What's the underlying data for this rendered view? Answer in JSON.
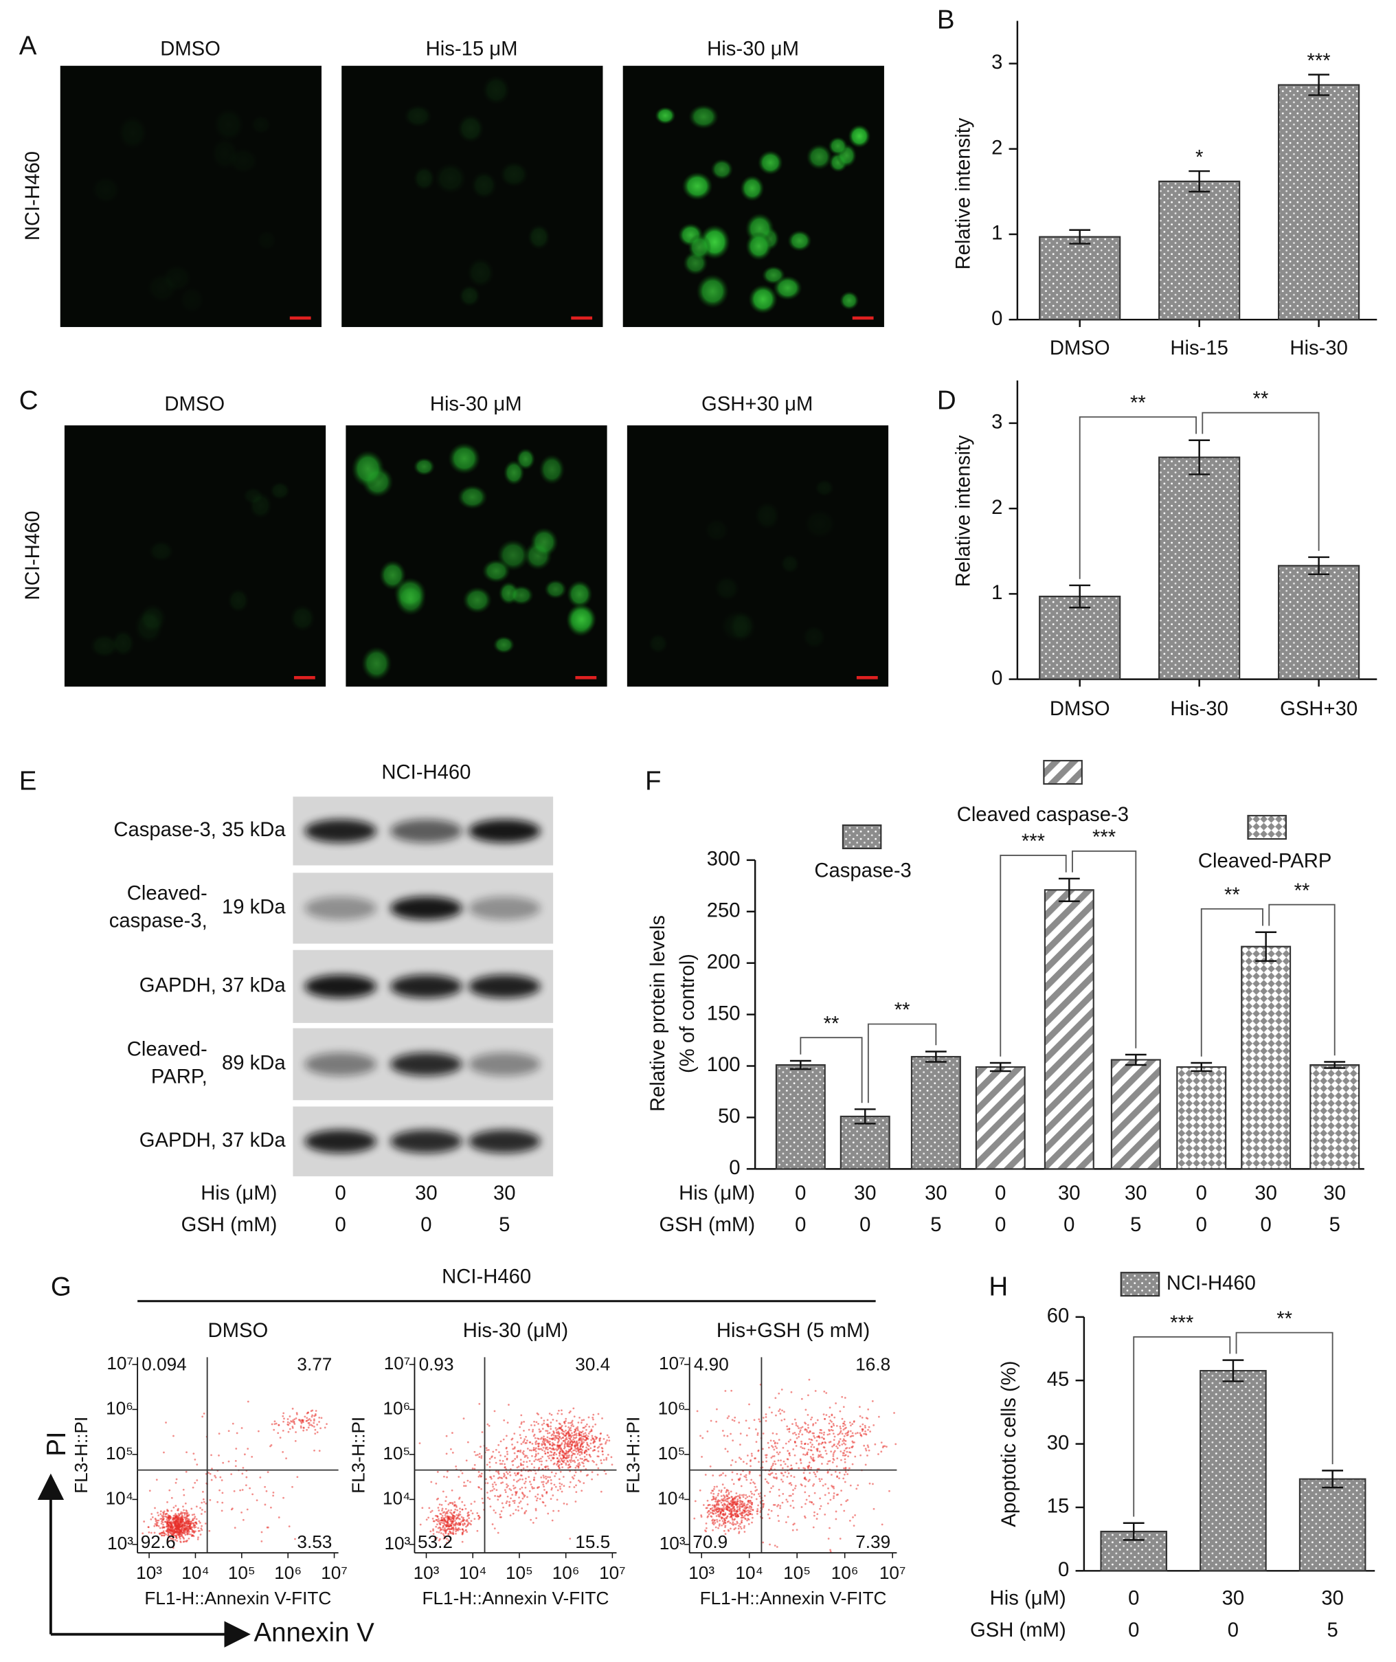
{
  "figure": {
    "panel_a": {
      "label": "A",
      "row_label": "NCI-H460",
      "titles": [
        "DMSO",
        "His-15 μM",
        "His-30 μM"
      ]
    },
    "panel_c": {
      "label": "C",
      "row_label": "NCI-H460",
      "titles": [
        "DMSO",
        "His-30 μM",
        "GSH+30 μM"
      ]
    },
    "panel_e": {
      "label": "E",
      "title": "NCI-H460",
      "rows": [
        [
          "Caspase-3, 35 kDa"
        ],
        [
          "Cleaved-",
          "caspase-3,",
          "19 kDa"
        ],
        [
          "GAPDH, 37 kDa"
        ],
        [
          "Cleaved-",
          "PARP,",
          "89 kDa"
        ],
        [
          "GAPDH, 37 kDa"
        ]
      ],
      "conditions": [
        {
          "label": "His (μM)",
          "values": [
            0,
            30,
            30
          ]
        },
        {
          "label": "GSH (mM)",
          "values": [
            0,
            0,
            5
          ]
        }
      ]
    },
    "panel_g": {
      "label": "G",
      "title": "NCI-H460",
      "axis_y": "PI",
      "axis_x": "Annexin V"
    }
  },
  "chart_data": [
    {
      "type": "bar",
      "label": "B",
      "ylabel": [
        "Relative intensity"
      ],
      "categories": [
        "DMSO",
        "His-15",
        "His-30"
      ],
      "values": [
        0.97,
        1.62,
        2.75
      ],
      "errors": [
        0.08,
        0.12,
        0.12
      ],
      "significance": [
        null,
        "*",
        "***"
      ],
      "ylim": [
        0,
        3.5
      ],
      "yticks": [
        0,
        1,
        2,
        3
      ],
      "color": "#8c8c8c",
      "pattern": "dots"
    },
    {
      "type": "bar",
      "label": "D",
      "ylabel": [
        "Relative intensity"
      ],
      "categories": [
        "DMSO",
        "His-30",
        "GSH+30"
      ],
      "values": [
        0.97,
        2.6,
        1.33
      ],
      "errors": [
        0.13,
        0.2,
        0.1
      ],
      "brackets": [
        {
          "text": "**",
          "between": [
            0,
            1
          ]
        },
        {
          "text": "**",
          "between": [
            1,
            2
          ]
        }
      ],
      "ylim": [
        0,
        3.5
      ],
      "yticks": [
        0,
        1,
        2,
        3
      ],
      "color": "#8c8c8c",
      "pattern": "dots"
    },
    {
      "type": "bar",
      "label": "F",
      "ylabel": [
        "Relative protein levels",
        "(% of control)"
      ],
      "ylim": [
        0,
        300
      ],
      "yticks": [
        0,
        50,
        100,
        150,
        200,
        250,
        300
      ],
      "color": "#8c8c8c",
      "series": [
        {
          "name": "Caspase-3",
          "pattern": "dots",
          "values": [
            101,
            51,
            109
          ],
          "errors": [
            4,
            7,
            5
          ],
          "brackets": [
            {
              "text": "**",
              "between": [
                0,
                1
              ]
            },
            {
              "text": "**",
              "between": [
                1,
                2
              ]
            }
          ]
        },
        {
          "name": "Cleaved caspase-3",
          "pattern": "hatch",
          "values": [
            99,
            271,
            106
          ],
          "errors": [
            4,
            11,
            5
          ],
          "brackets": [
            {
              "text": "***",
              "between": [
                0,
                1
              ]
            },
            {
              "text": "***",
              "between": [
                1,
                2
              ]
            }
          ]
        },
        {
          "name": "Cleaved-PARP",
          "pattern": "check",
          "values": [
            99,
            216,
            101
          ],
          "errors": [
            4,
            14,
            3
          ],
          "brackets": [
            {
              "text": "**",
              "between": [
                0,
                1
              ]
            },
            {
              "text": "**",
              "between": [
                1,
                2
              ]
            }
          ]
        }
      ],
      "conditions": [
        {
          "label": "His (μM)",
          "values": [
            0,
            30,
            30,
            0,
            30,
            30,
            0,
            30,
            30
          ]
        },
        {
          "label": "GSH (mM)",
          "values": [
            0,
            0,
            5,
            0,
            0,
            5,
            0,
            0,
            5
          ]
        }
      ]
    },
    {
      "type": "flow",
      "title": "DMSO",
      "xlabel": "FL1-H::Annexin V-FITC",
      "ylabel": "FL3-H::PI",
      "log_scale": true,
      "xlim": [
        560,
        12300000
      ],
      "ylim": [
        650,
        14500000
      ],
      "xticks": [
        {
          "value": 1000,
          "label": "10³"
        },
        {
          "value": 10000,
          "label": "10⁴"
        },
        {
          "value": 100000,
          "label": "10⁵"
        },
        {
          "value": 1000000,
          "label": "10⁶"
        },
        {
          "value": 10000000,
          "label": "10⁷"
        }
      ],
      "yticks": [
        {
          "value": 1000,
          "label": "10³"
        },
        {
          "value": 10000,
          "label": "10⁴"
        },
        {
          "value": 100000,
          "label": "10⁵"
        },
        {
          "value": 1000000,
          "label": "10⁶"
        },
        {
          "value": 10000000,
          "label": "10⁷"
        }
      ],
      "gate": [
        18000,
        45000
      ],
      "quadrants": [
        0.094,
        3.77,
        92.6,
        3.53
      ],
      "color": "#e8302a"
    },
    {
      "type": "flow",
      "title": "His-30 (μM)",
      "xlabel": "FL1-H::Annexin V-FITC",
      "ylabel": "FL3-H::PI",
      "log_scale": true,
      "xlim": [
        560,
        12300000
      ],
      "ylim": [
        650,
        14500000
      ],
      "xticks": [
        {
          "value": 1000,
          "label": "10³"
        },
        {
          "value": 10000,
          "label": "10⁴"
        },
        {
          "value": 100000,
          "label": "10⁵"
        },
        {
          "value": 1000000,
          "label": "10⁶"
        },
        {
          "value": 10000000,
          "label": "10⁷"
        }
      ],
      "yticks": [
        {
          "value": 1000,
          "label": "10³"
        },
        {
          "value": 10000,
          "label": "10⁴"
        },
        {
          "value": 100000,
          "label": "10⁵"
        },
        {
          "value": 1000000,
          "label": "10⁶"
        },
        {
          "value": 10000000,
          "label": "10⁷"
        }
      ],
      "gate": [
        18000,
        45000
      ],
      "quadrants": [
        0.93,
        30.4,
        53.2,
        15.5
      ],
      "color": "#e8302a"
    },
    {
      "type": "flow",
      "title": "His+GSH (5 mM)",
      "xlabel": "FL1-H::Annexin V-FITC",
      "ylabel": "FL3-H::PI",
      "log_scale": true,
      "xlim": [
        560,
        12300000
      ],
      "ylim": [
        650,
        14500000
      ],
      "xticks": [
        {
          "value": 1000,
          "label": "10³"
        },
        {
          "value": 10000,
          "label": "10⁴"
        },
        {
          "value": 100000,
          "label": "10⁵"
        },
        {
          "value": 1000000,
          "label": "10⁶"
        },
        {
          "value": 10000000,
          "label": "10⁷"
        }
      ],
      "yticks": [
        {
          "value": 1000,
          "label": "10³"
        },
        {
          "value": 10000,
          "label": "10⁴"
        },
        {
          "value": 100000,
          "label": "10⁵"
        },
        {
          "value": 1000000,
          "label": "10⁶"
        },
        {
          "value": 10000000,
          "label": "10⁷"
        }
      ],
      "gate": [
        18000,
        45000
      ],
      "quadrants": [
        {
          "value": 4.9,
          "label": "4.90"
        },
        16.8,
        70.9,
        7.39
      ],
      "color": "#e8302a"
    },
    {
      "type": "bar",
      "label": "H",
      "ylabel": [
        "Apoptotic cells (%)"
      ],
      "ylim": [
        0,
        60
      ],
      "yticks": [
        0,
        15,
        30,
        45,
        60
      ],
      "color": "#8c8c8c",
      "series": [
        {
          "name": "NCI-H460",
          "pattern": "dots",
          "values": [
            9.3,
            47.3,
            21.7
          ],
          "errors": [
            2,
            2.5,
            2
          ],
          "brackets": [
            {
              "text": "***",
              "between": [
                0,
                1
              ]
            },
            {
              "text": "**",
              "between": [
                1,
                2
              ]
            }
          ]
        }
      ],
      "conditions": [
        {
          "label": "His (μM)",
          "values": [
            0,
            30,
            30
          ]
        },
        {
          "label": "GSH (mM)",
          "values": [
            0,
            0,
            5
          ]
        }
      ]
    }
  ]
}
